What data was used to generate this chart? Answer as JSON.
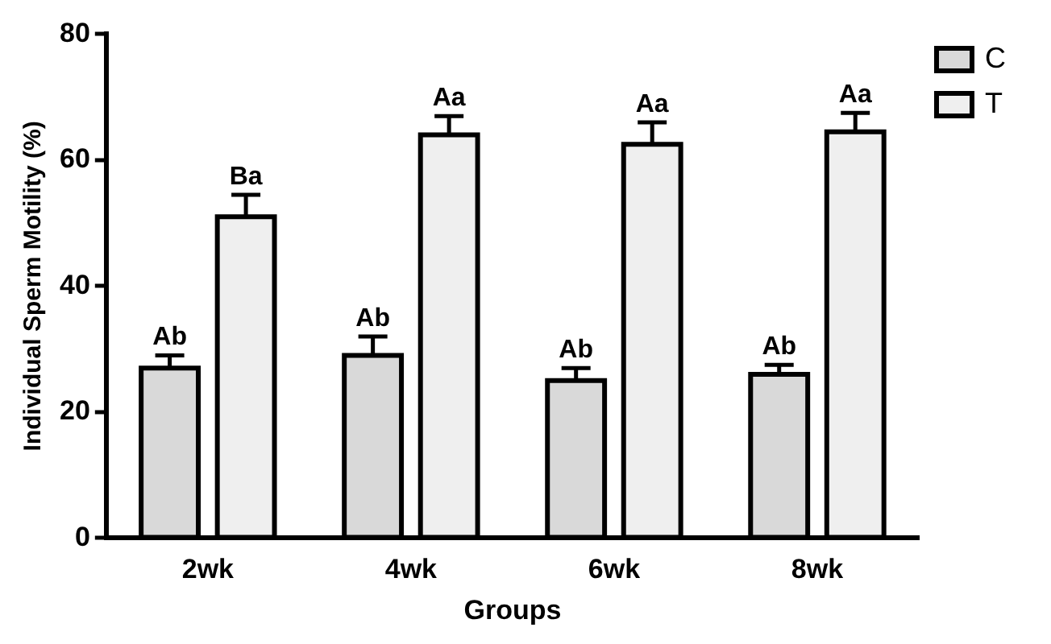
{
  "chart_data": {
    "type": "bar",
    "xlabel": "Groups",
    "ylabel": "Individual Sperm Motility (%)",
    "categories": [
      "2wk",
      "4wk",
      "6wk",
      "8wk"
    ],
    "series": [
      {
        "name": "C",
        "color": "#d9d9d9",
        "values": [
          27,
          29,
          25,
          26
        ],
        "errors": [
          2,
          3,
          2,
          1.5
        ]
      },
      {
        "name": "T",
        "color": "#efefef",
        "values": [
          51,
          64,
          62.5,
          64.5
        ],
        "errors": [
          3.5,
          3,
          3.5,
          3
        ]
      }
    ],
    "ylim": [
      0,
      80
    ],
    "yticks": [
      0,
      20,
      40,
      60,
      80
    ],
    "grid": false,
    "legend": "top right",
    "annotations": [
      "Ab",
      "Ba",
      "Ab",
      "Aa",
      "Ab",
      "Aa",
      "Ab",
      "Aa"
    ]
  }
}
